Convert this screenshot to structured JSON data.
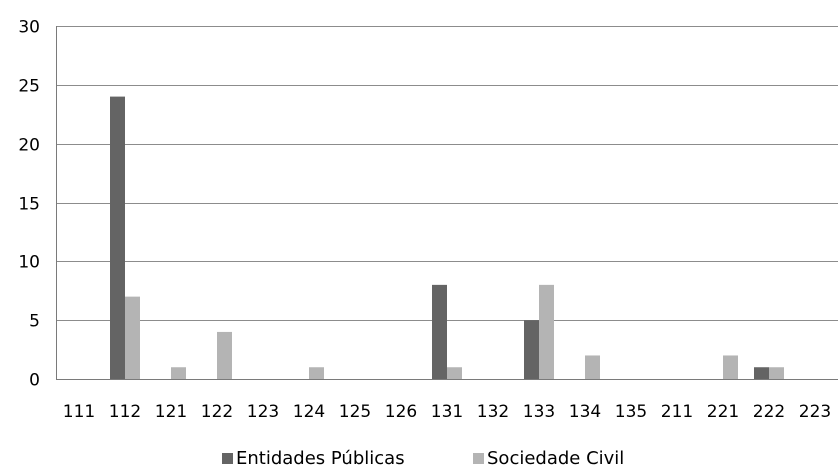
{
  "chart_data": {
    "type": "bar",
    "title": "",
    "xlabel": "",
    "ylabel": "",
    "categories": [
      "111",
      "112",
      "121",
      "122",
      "123",
      "124",
      "125",
      "126",
      "131",
      "132",
      "133",
      "134",
      "135",
      "211",
      "221",
      "222",
      "223"
    ],
    "series": [
      {
        "name": "Entidades Públicas",
        "color": "#646464",
        "values": [
          0,
          24,
          0,
          0,
          0,
          0,
          0,
          0,
          8,
          0,
          5,
          0,
          0,
          0,
          0,
          1,
          0
        ]
      },
      {
        "name": "Sociedade Civil",
        "color": "#b4b4b4",
        "values": [
          0,
          7,
          1,
          4,
          0,
          1,
          0,
          0,
          1,
          0,
          8,
          2,
          0,
          0,
          2,
          1,
          0
        ]
      }
    ],
    "ylim": [
      0,
      30
    ],
    "yticks": [
      0,
      5,
      10,
      15,
      20,
      25,
      30
    ],
    "grid": true,
    "legend_position": "bottom"
  }
}
